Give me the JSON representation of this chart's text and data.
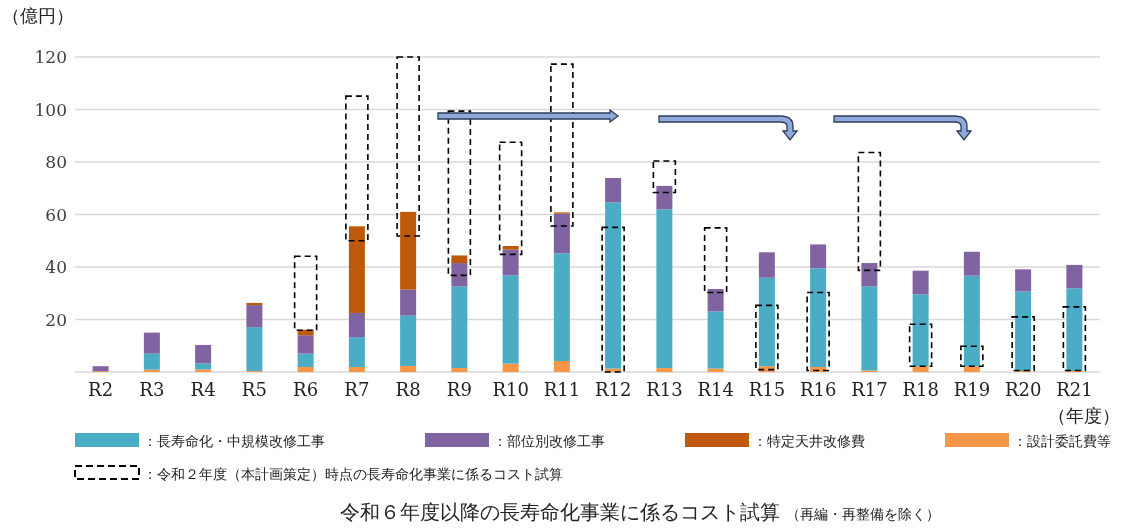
{
  "chart_data": [
    {
      "type": "bar",
      "stacked": true,
      "title": "令和６年度以降の長寿命化事業に係るコスト試算",
      "subtitle": "（再編・再整備を除く）",
      "xlabel": "（年度）",
      "categories": [
        "R2",
        "R3",
        "R4",
        "R5",
        "R6",
        "R7",
        "R8",
        "R9",
        "R10",
        "R11",
        "R12",
        "R13",
        "R14",
        "R15",
        "R16",
        "R17",
        "R18",
        "R19",
        "R20",
        "R21"
      ],
      "series": [
        {
          "name": "：設計委託費等",
          "color": "#f79646",
          "values": [
            0.3,
            0.9,
            1.0,
            0.4,
            1.9,
            1.9,
            2.3,
            1.5,
            3.2,
            4.2,
            1.3,
            1.5,
            1.3,
            2.2,
            1.9,
            0.6,
            2.2,
            2.2,
            0.4,
            0.4
          ]
        },
        {
          "name": "：長寿命化・中規模改修工事",
          "color": "#4bacc6",
          "values": [
            0,
            6.1,
            2.3,
            16.7,
            5.1,
            11.4,
            19.2,
            31.1,
            33.6,
            41.0,
            63.3,
            60.5,
            21.8,
            33.7,
            37.6,
            32.0,
            27.4,
            34.5,
            30.3,
            31.5
          ]
        },
        {
          "name": "：部位別改修工事",
          "color": "#8064a2",
          "values": [
            1.9,
            8.0,
            7.0,
            8.4,
            7.0,
            9.2,
            9.9,
            8.9,
            9.8,
            15.1,
            9.3,
            8.9,
            8.5,
            9.7,
            9.1,
            8.9,
            9.0,
            9.1,
            8.4,
            8.9
          ]
        },
        {
          "name": "：特定天井改修費",
          "color": "#c0580a",
          "values": [
            0,
            0,
            0,
            0.8,
            2.1,
            33.0,
            29.6,
            2.9,
            1.4,
            0.5,
            0,
            0,
            0,
            0,
            0,
            0,
            0,
            0,
            0,
            0
          ]
        }
      ],
      "ylim": [
        0,
        120
      ],
      "yticks": [
        20,
        40,
        60,
        80,
        100,
        120
      ],
      "grid": "y",
      "tick_labels": "x",
      "legend": "bottom"
    },
    {
      "type": "bar",
      "categories": [
        null,
        null,
        null,
        null,
        null,
        null,
        null,
        null,
        null,
        null,
        null,
        null,
        null,
        null,
        null,
        null,
        null,
        null,
        null,
        null
      ],
      "series": [
        {
          "name": "：令和２年度（本計画策定）時点の長寿命化事業に係るコスト試算",
          "color": "#000000",
          "line_style": "dashed",
          "base": [
            null,
            null,
            null,
            null,
            15.9,
            50.0,
            51.8,
            36.8,
            44.8,
            55.6,
            0,
            68.4,
            30.3,
            0.9,
            0.6,
            38.7,
            2.2,
            2.2,
            0.6,
            0.6
          ],
          "values": [
            null,
            null,
            null,
            null,
            28.2,
            55.1,
            68.2,
            62.6,
            42.7,
            61.7,
            55.1,
            12.0,
            24.6,
            24.5,
            29.7,
            44.9,
            16.0,
            7.6,
            20.4,
            24.2
          ]
        }
      ],
      "ylabel": "（億円）",
      "ylim": [
        0,
        120
      ],
      "yticks": [
        20,
        40,
        60,
        80,
        100,
        120
      ],
      "tick_labels": "y",
      "legend": "bottom"
    }
  ]
}
